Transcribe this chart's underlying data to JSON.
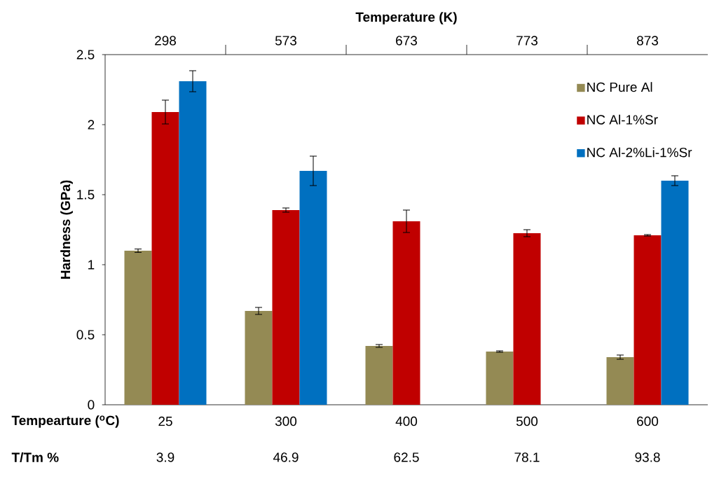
{
  "chart_data": {
    "type": "bar",
    "xlabel": "Tempearture ($^{o}$C)",
    "ylabel": "Hardness (GPa)",
    "x2label": "Temperature (K)",
    "categories": [
      "25",
      "300",
      "400",
      "500",
      "600"
    ],
    "series": [
      {
        "name": "NC Pure Al",
        "color": "#948a54",
        "values": [
          1.1,
          0.67,
          0.42,
          0.38,
          0.34
        ],
        "errors": [
          0.012,
          0.025,
          0.01,
          0.005,
          0.015
        ]
      },
      {
        "name": "NC Al-1%Sr",
        "color": "#c00000",
        "values": [
          2.09,
          1.39,
          1.31,
          1.225,
          1.21
        ],
        "errors": [
          0.085,
          0.015,
          0.08,
          0.025,
          0.005
        ]
      },
      {
        "name": "NC Al-2%Li-1%Sr",
        "color": "#0070c0",
        "values": [
          2.31,
          1.67,
          null,
          null,
          1.6
        ],
        "errors": [
          0.075,
          0.105,
          null,
          null,
          0.035
        ]
      }
    ],
    "ylim": [
      0,
      2.5
    ],
    "yticks": [
      0,
      0.5,
      1,
      1.5,
      2,
      2.5
    ],
    "annotations": [
      "298",
      "573",
      "673",
      "773",
      "873",
      "T/Tm %",
      "3.9",
      "46.9",
      "62.5",
      "78.1",
      "93.8"
    ],
    "legend": "top right",
    "grid": false
  }
}
